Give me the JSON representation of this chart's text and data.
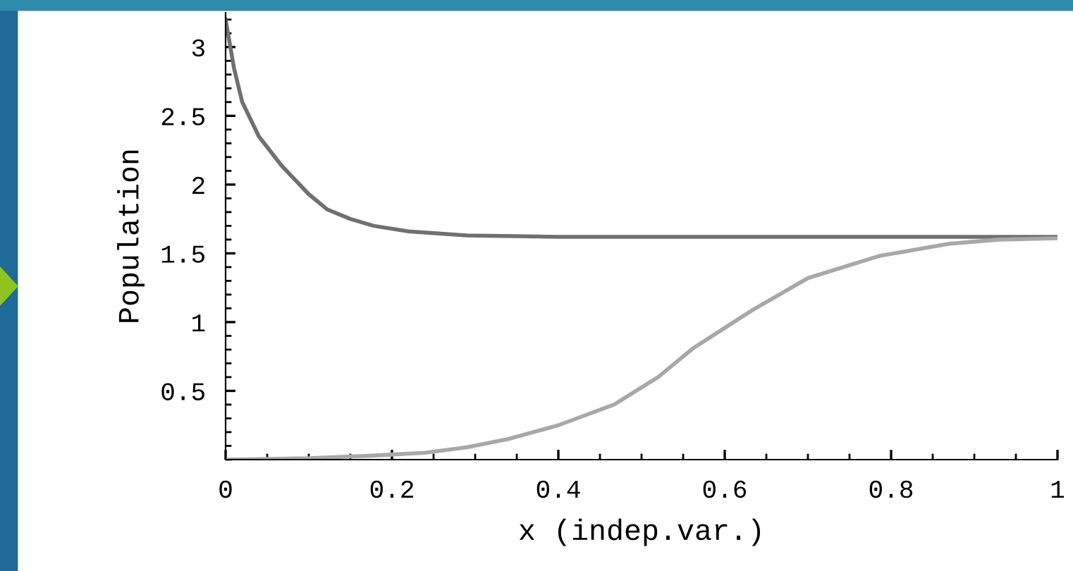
{
  "chart_data": {
    "type": "line",
    "xlabel": "x (indep.var.)",
    "ylabel": "Population",
    "xlim": [
      0,
      1
    ],
    "ylim": [
      0,
      3.25
    ],
    "xticks": [
      0,
      0.2,
      0.4,
      0.6,
      0.8,
      1
    ],
    "yticks": [
      0.5,
      1,
      1.5,
      2,
      2.5,
      3
    ],
    "grid": false,
    "legend": false,
    "marker": "none",
    "line_style": "solid",
    "series": [
      {
        "color": "#707070",
        "x": [
          0,
          0.01,
          0.02,
          0.04,
          0.067,
          0.1,
          0.122,
          0.15,
          0.178,
          0.22,
          0.29,
          0.4,
          0.6,
          0.8,
          1
        ],
        "values": [
          3.2,
          2.85,
          2.6,
          2.35,
          2.14,
          1.93,
          1.82,
          1.75,
          1.7,
          1.66,
          1.63,
          1.62,
          1.62,
          1.62,
          1.62
        ]
      },
      {
        "color": "#a8a8a8",
        "x": [
          0,
          0.1,
          0.18,
          0.24,
          0.29,
          0.34,
          0.4,
          0.467,
          0.52,
          0.562,
          0.634,
          0.7,
          0.785,
          0.87,
          0.93,
          1
        ],
        "values": [
          0.0,
          0.01,
          0.03,
          0.05,
          0.09,
          0.15,
          0.25,
          0.4,
          0.6,
          0.81,
          1.09,
          1.32,
          1.48,
          1.57,
          1.6,
          1.61
        ]
      }
    ]
  }
}
